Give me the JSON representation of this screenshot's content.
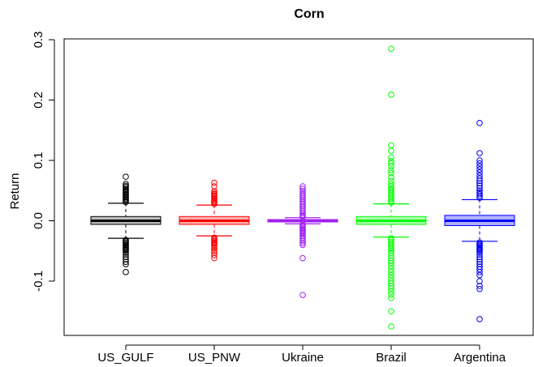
{
  "chart_data": {
    "type": "box",
    "title": "Corn",
    "xlabel": "",
    "ylabel": "Return",
    "ylim": [
      -0.18,
      0.3
    ],
    "yticks": [
      -0.1,
      0.0,
      0.1,
      0.2,
      0.3
    ],
    "ytick_labels": [
      "-0.1",
      "0.0",
      "0.1",
      "0.2",
      "0.3"
    ],
    "categories": [
      "US_GULF",
      "US_PNW",
      "Ukraine",
      "Brazil",
      "Argentina"
    ],
    "grid": false,
    "series": [
      {
        "category": "US_GULF",
        "color": "#000000",
        "fill": "#bebebe",
        "q1": -0.006,
        "median": 0.0,
        "q3": 0.007,
        "whisker_low": -0.029,
        "whisker_high": 0.029,
        "outliers": [
          0.073,
          0.061,
          0.058,
          0.056,
          0.053,
          0.051,
          0.049,
          0.047,
          0.045,
          0.043,
          0.041,
          0.039,
          0.037,
          0.035,
          0.033,
          0.031,
          -0.032,
          -0.034,
          -0.036,
          -0.038,
          -0.04,
          -0.042,
          -0.044,
          -0.046,
          -0.048,
          -0.05,
          -0.053,
          -0.056,
          -0.06,
          -0.064,
          -0.068,
          -0.072,
          -0.085
        ]
      },
      {
        "category": "US_PNW",
        "color": "#ff0000",
        "fill": "#ffb0b0",
        "q1": -0.006,
        "median": 0.0,
        "q3": 0.007,
        "whisker_low": -0.025,
        "whisker_high": 0.026,
        "outliers": [
          0.063,
          0.057,
          0.049,
          0.046,
          0.044,
          0.042,
          0.04,
          0.038,
          0.036,
          0.034,
          0.032,
          0.03,
          0.028,
          -0.028,
          -0.03,
          -0.032,
          -0.034,
          -0.036,
          -0.038,
          -0.04,
          -0.043,
          -0.046,
          -0.05,
          -0.053,
          -0.057,
          -0.062
        ]
      },
      {
        "category": "Ukraine",
        "color": "#a020f0",
        "fill": "#dcb0f8",
        "q1": -0.002,
        "median": 0.0,
        "q3": 0.002,
        "whisker_low": -0.005,
        "whisker_high": 0.005,
        "outliers": [
          0.057,
          0.053,
          0.049,
          0.046,
          0.043,
          0.04,
          0.037,
          0.034,
          0.031,
          0.028,
          0.025,
          0.022,
          0.019,
          0.016,
          0.013,
          0.01,
          0.008,
          0.006,
          -0.006,
          -0.008,
          -0.01,
          -0.012,
          -0.014,
          -0.016,
          -0.018,
          -0.02,
          -0.022,
          -0.025,
          -0.028,
          -0.031,
          -0.034,
          -0.037,
          -0.04,
          -0.062,
          -0.123
        ]
      },
      {
        "category": "Brazil",
        "color": "#00ff00",
        "fill": "#b0ffb0",
        "q1": -0.006,
        "median": 0.0,
        "q3": 0.007,
        "whisker_low": -0.027,
        "whisker_high": 0.028,
        "outliers": [
          0.285,
          0.209,
          0.125,
          0.116,
          0.105,
          0.099,
          0.095,
          0.09,
          0.084,
          0.079,
          0.072,
          0.066,
          0.061,
          0.057,
          0.054,
          0.051,
          0.048,
          0.045,
          0.042,
          0.039,
          0.036,
          0.033,
          0.03,
          -0.029,
          -0.032,
          -0.035,
          -0.038,
          -0.041,
          -0.044,
          -0.047,
          -0.05,
          -0.054,
          -0.058,
          -0.062,
          -0.066,
          -0.07,
          -0.075,
          -0.08,
          -0.085,
          -0.09,
          -0.095,
          -0.1,
          -0.104,
          -0.108,
          -0.112,
          -0.117,
          -0.122,
          -0.128,
          -0.15,
          -0.175
        ]
      },
      {
        "category": "Argentina",
        "color": "#0000ff",
        "fill": "#b0b0ff",
        "q1": -0.008,
        "median": 0.0,
        "q3": 0.009,
        "whisker_low": -0.034,
        "whisker_high": 0.035,
        "outliers": [
          0.162,
          0.112,
          0.1,
          0.095,
          0.09,
          0.085,
          0.08,
          0.075,
          0.07,
          0.066,
          0.062,
          0.058,
          0.054,
          0.05,
          0.047,
          0.044,
          0.041,
          0.038,
          -0.036,
          -0.038,
          -0.04,
          -0.042,
          -0.044,
          -0.046,
          -0.048,
          -0.05,
          -0.053,
          -0.056,
          -0.06,
          -0.064,
          -0.068,
          -0.072,
          -0.076,
          -0.08,
          -0.085,
          -0.09,
          -0.1,
          -0.108,
          -0.113,
          -0.163
        ]
      }
    ]
  }
}
